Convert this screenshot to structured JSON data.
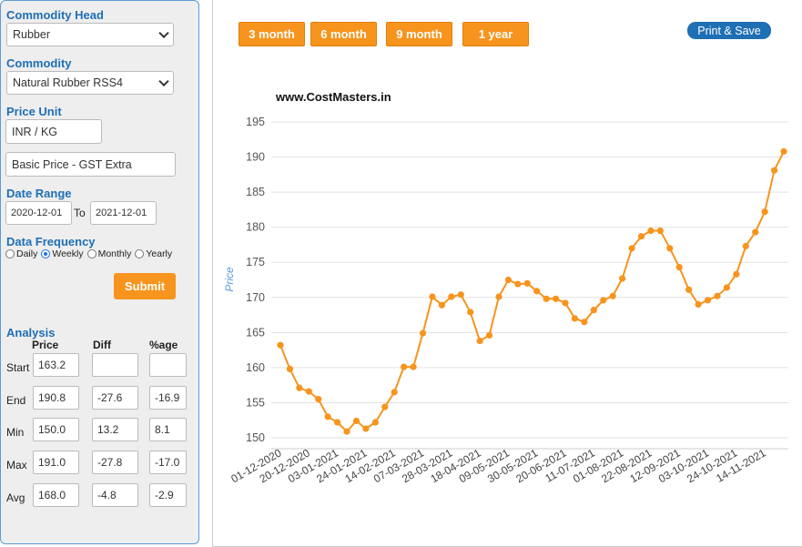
{
  "sidebar": {
    "commodity_head_label": "Commodity Head",
    "commodity_head_value": "Rubber",
    "commodity_label": "Commodity",
    "commodity_value": "Natural Rubber RSS4",
    "price_unit_label": "Price Unit",
    "price_unit_value": "INR / KG",
    "basis_value": "Basic Price - GST Extra",
    "date_range_label": "Date Range",
    "date_from": "2020-12-01",
    "date_to_label": "To",
    "date_to": "2021-12-01",
    "frequency_label": "Data Frequency",
    "frequency_options": [
      "Daily",
      "Weekly",
      "Monthly",
      "Yearly"
    ],
    "frequency_selected": "Weekly",
    "submit_label": "Submit"
  },
  "analysis": {
    "title": "Analysis",
    "columns": [
      "Price",
      "Diff",
      "%age"
    ],
    "rows": [
      {
        "label": "Start",
        "price": "163.2",
        "diff": "",
        "pct": ""
      },
      {
        "label": "End",
        "price": "190.8",
        "diff": "-27.6",
        "pct": "-16.9"
      },
      {
        "label": "Min",
        "price": "150.0",
        "diff": "13.2",
        "pct": "8.1"
      },
      {
        "label": "Max",
        "price": "191.0",
        "diff": "-27.8",
        "pct": "-17.0"
      },
      {
        "label": "Avg",
        "price": "168.0",
        "diff": "-4.8",
        "pct": "-2.9"
      }
    ]
  },
  "period_buttons": [
    "3 month",
    "6 month",
    "9 month",
    "1 year"
  ],
  "print_label": "Print & Save",
  "colors": {
    "accent": "#f7941d",
    "brand": "#1f6fb5",
    "line": "#f7941d"
  },
  "chart_data": {
    "type": "line",
    "title": "www.CostMasters.in",
    "xlabel": "",
    "ylabel": "Price",
    "ylim": [
      150,
      195
    ],
    "yticks": [
      150,
      155,
      160,
      165,
      170,
      175,
      180,
      185,
      190,
      195
    ],
    "grid": true,
    "x_tick_labels": [
      "01-12-2020",
      "20-12-2020",
      "03-01-2021",
      "24-01-2021",
      "14-02-2021",
      "07-03-2021",
      "28-03-2021",
      "18-04-2021",
      "09-05-2021",
      "30-05-2021",
      "20-06-2021",
      "11-07-2021",
      "01-08-2021",
      "22-08-2021",
      "12-09-2021",
      "03-10-2021",
      "24-10-2021",
      "14-11-2021"
    ],
    "series": [
      {
        "name": "",
        "values": [
          163.2,
          159.8,
          157.1,
          156.6,
          155.5,
          153.0,
          152.2,
          150.9,
          152.4,
          151.3,
          152.2,
          154.4,
          156.5,
          160.1,
          160.1,
          164.9,
          170.1,
          168.9,
          170.1,
          170.4,
          167.9,
          163.8,
          164.6,
          170.1,
          172.5,
          171.9,
          172.0,
          170.9,
          169.8,
          169.8,
          169.2,
          167.0,
          166.5,
          168.2,
          169.6,
          170.2,
          172.7,
          177.0,
          178.7,
          179.5,
          179.5,
          177.0,
          174.3,
          171.1,
          169.0,
          169.6,
          170.2,
          171.4,
          173.3,
          177.3,
          179.3,
          182.2,
          188.1,
          190.8
        ]
      }
    ]
  }
}
